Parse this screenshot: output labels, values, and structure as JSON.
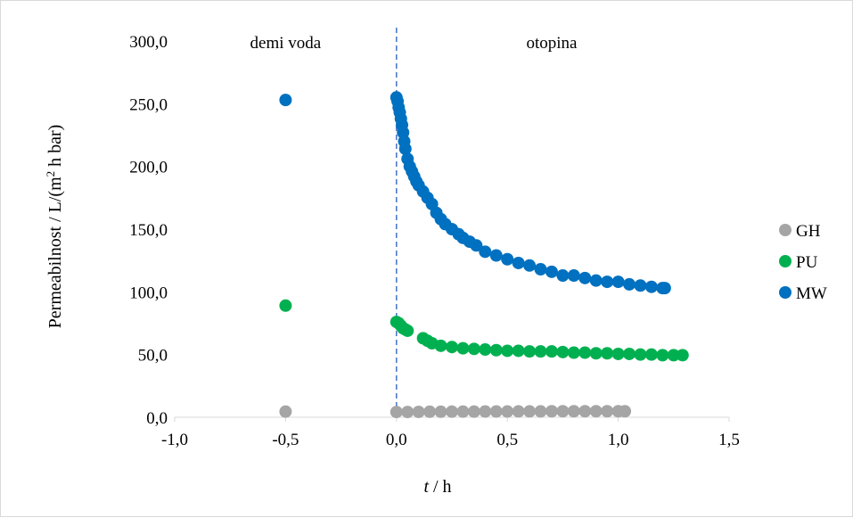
{
  "chart_data": {
    "type": "scatter",
    "xlabel": {
      "italic": "t",
      "rest": " / h"
    },
    "ylabel": {
      "prefix": "Permeabilnost / L/(m",
      "sup": "2",
      "suffix": " h bar)"
    },
    "xlim": [
      -1.0,
      1.5
    ],
    "ylim": [
      0,
      300
    ],
    "x_ticks": [
      -1.0,
      -0.5,
      0.0,
      0.5,
      1.0,
      1.5
    ],
    "x_tick_labels": [
      "-1,0",
      "-0,5",
      "0,0",
      "0,5",
      "1,0",
      "1,5"
    ],
    "y_ticks": [
      0,
      50,
      100,
      150,
      200,
      250,
      300
    ],
    "y_tick_labels": [
      "0,0",
      "50,0",
      "100,0",
      "150,0",
      "200,0",
      "250,0",
      "300,0"
    ],
    "grid": false,
    "legend_position": "right",
    "vertical_line": {
      "x": 0.0,
      "style": "dashed"
    },
    "annotations": [
      {
        "text": "demi voda",
        "x": -0.5,
        "y": 300
      },
      {
        "text": "otopina",
        "x": 0.7,
        "y": 300
      }
    ],
    "series": [
      {
        "name": "GH",
        "color": "#a5a5a5",
        "points": [
          [
            -0.5,
            4.5
          ],
          [
            0.0,
            4.2
          ],
          [
            0.05,
            4.2
          ],
          [
            0.1,
            4.3
          ],
          [
            0.15,
            4.4
          ],
          [
            0.2,
            4.4
          ],
          [
            0.25,
            4.5
          ],
          [
            0.3,
            4.5
          ],
          [
            0.35,
            4.5
          ],
          [
            0.4,
            4.6
          ],
          [
            0.45,
            4.6
          ],
          [
            0.5,
            4.6
          ],
          [
            0.55,
            4.7
          ],
          [
            0.6,
            4.7
          ],
          [
            0.65,
            4.7
          ],
          [
            0.7,
            4.8
          ],
          [
            0.75,
            4.8
          ],
          [
            0.8,
            4.8
          ],
          [
            0.85,
            4.8
          ],
          [
            0.9,
            4.8
          ],
          [
            0.95,
            4.8
          ],
          [
            1.0,
            4.8
          ],
          [
            1.03,
            4.8
          ]
        ]
      },
      {
        "name": "PU",
        "color": "#00b050",
        "points": [
          [
            -0.5,
            89
          ],
          [
            0.0,
            76
          ],
          [
            0.01,
            75
          ],
          [
            0.02,
            73
          ],
          [
            0.03,
            71
          ],
          [
            0.04,
            70
          ],
          [
            0.05,
            69
          ],
          [
            0.12,
            63
          ],
          [
            0.14,
            61
          ],
          [
            0.16,
            59
          ],
          [
            0.2,
            57
          ],
          [
            0.25,
            56
          ],
          [
            0.3,
            55
          ],
          [
            0.35,
            54.5
          ],
          [
            0.4,
            54
          ],
          [
            0.45,
            53.5
          ],
          [
            0.5,
            53
          ],
          [
            0.55,
            53
          ],
          [
            0.6,
            52.5
          ],
          [
            0.65,
            52.5
          ],
          [
            0.7,
            52.5
          ],
          [
            0.75,
            52
          ],
          [
            0.8,
            51.5
          ],
          [
            0.85,
            51.5
          ],
          [
            0.9,
            51
          ],
          [
            0.95,
            51
          ],
          [
            1.0,
            50.5
          ],
          [
            1.05,
            50.5
          ],
          [
            1.1,
            50
          ],
          [
            1.15,
            50
          ],
          [
            1.2,
            49.5
          ],
          [
            1.25,
            49.5
          ],
          [
            1.29,
            49.5
          ]
        ]
      },
      {
        "name": "MW",
        "color": "#0070c0",
        "points": [
          [
            -0.5,
            253
          ],
          [
            0.0,
            255
          ],
          [
            0.005,
            252
          ],
          [
            0.01,
            247
          ],
          [
            0.015,
            243
          ],
          [
            0.02,
            238
          ],
          [
            0.025,
            233
          ],
          [
            0.03,
            227
          ],
          [
            0.035,
            220
          ],
          [
            0.04,
            214
          ],
          [
            0.05,
            206
          ],
          [
            0.06,
            200
          ],
          [
            0.07,
            196
          ],
          [
            0.08,
            192
          ],
          [
            0.09,
            188
          ],
          [
            0.1,
            185
          ],
          [
            0.12,
            180
          ],
          [
            0.14,
            175
          ],
          [
            0.16,
            170
          ],
          [
            0.18,
            163
          ],
          [
            0.2,
            158
          ],
          [
            0.22,
            154
          ],
          [
            0.25,
            150
          ],
          [
            0.28,
            146
          ],
          [
            0.3,
            143
          ],
          [
            0.33,
            140
          ],
          [
            0.36,
            137
          ],
          [
            0.4,
            132
          ],
          [
            0.45,
            129
          ],
          [
            0.5,
            126
          ],
          [
            0.55,
            123
          ],
          [
            0.6,
            121
          ],
          [
            0.65,
            118
          ],
          [
            0.7,
            116
          ],
          [
            0.75,
            113
          ],
          [
            0.8,
            113
          ],
          [
            0.85,
            111
          ],
          [
            0.9,
            109
          ],
          [
            0.95,
            108
          ],
          [
            1.0,
            108
          ],
          [
            1.05,
            106
          ],
          [
            1.1,
            105
          ],
          [
            1.15,
            104
          ],
          [
            1.2,
            103
          ],
          [
            1.21,
            103
          ]
        ]
      }
    ]
  }
}
